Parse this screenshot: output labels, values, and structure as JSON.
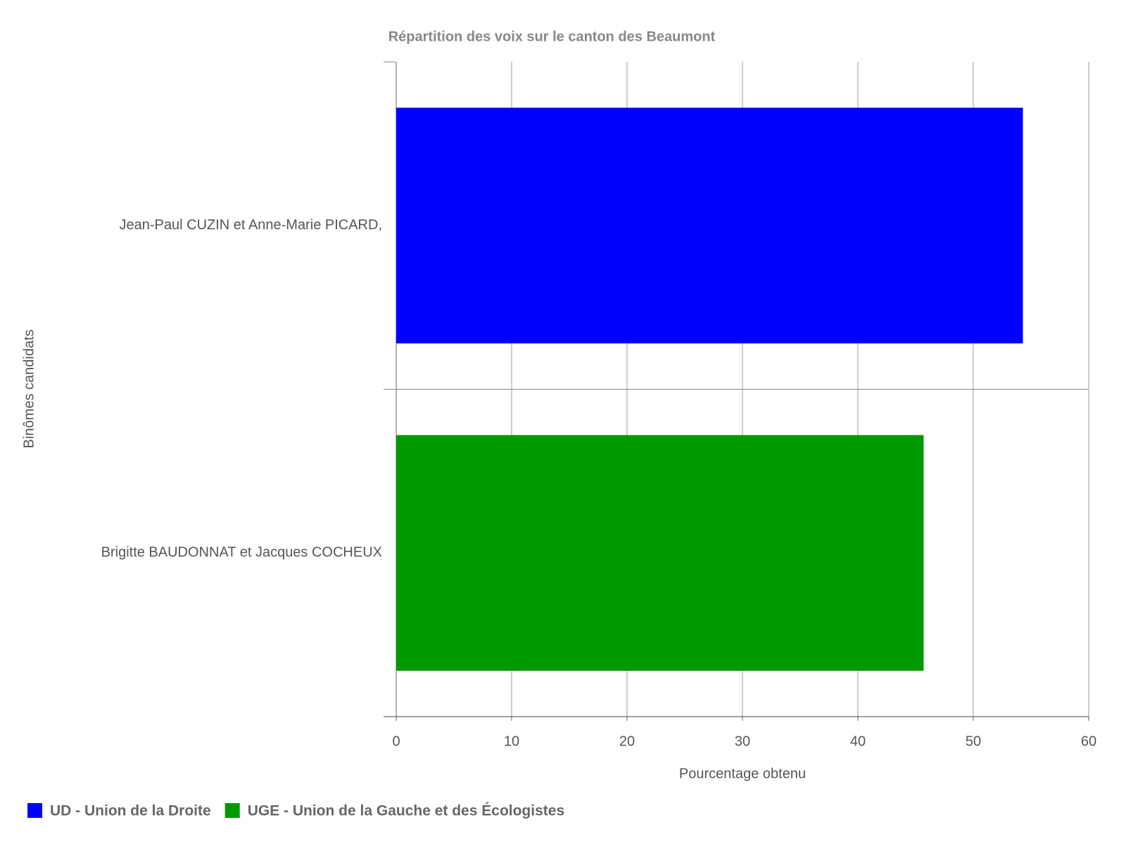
{
  "chart_data": {
    "type": "bar",
    "orientation": "horizontal",
    "title": "Répartition des voix sur le canton des Beaumont",
    "xlabel": "Pourcentage obtenu",
    "ylabel": "Binômes candidats",
    "categories": [
      "Jean-Paul CUZIN et Anne-Marie PICARD,",
      "Brigitte BAUDONNAT et Jacques COCHEUX"
    ],
    "series": [
      {
        "name": "UD - Union de la Droite",
        "color": "#0000ff",
        "values": [
          54.3,
          null
        ]
      },
      {
        "name": "UGE - Union de la Gauche et des Écologistes",
        "color": "#009900",
        "values": [
          null,
          45.7
        ]
      }
    ],
    "xlim": [
      0,
      60
    ],
    "xticks": [
      0,
      10,
      20,
      30,
      40,
      50,
      60
    ],
    "grid": true,
    "legend": "bottom-left"
  }
}
